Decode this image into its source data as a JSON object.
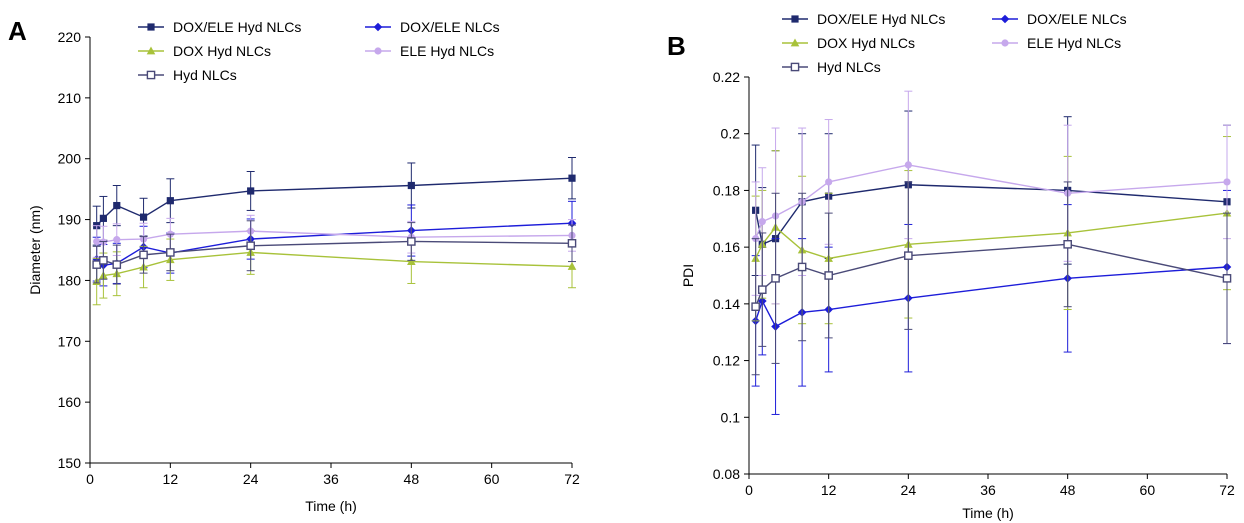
{
  "chart_data": [
    {
      "type": "line",
      "panel_label": "A",
      "xlabel": "Time (h)",
      "ylabel": "Diameter (nm)",
      "xlim": [
        0,
        72
      ],
      "ylim": [
        150,
        220
      ],
      "xticks": [
        0,
        12,
        24,
        36,
        48,
        60,
        72
      ],
      "yticks": [
        150,
        160,
        170,
        180,
        190,
        200,
        210,
        220
      ],
      "grid": false,
      "legend_position": "top-center",
      "x": [
        1,
        2,
        4,
        8,
        12,
        24,
        48,
        72
      ],
      "series": [
        {
          "name": "DOX/ELE Hyd NLCs",
          "color": "#1f2a6e",
          "marker": "square",
          "values": [
            189,
            190.2,
            192.3,
            190.4,
            193.1,
            194.7,
            195.6,
            196.8
          ],
          "errors": [
            3.2,
            3.6,
            3.3,
            3.1,
            3.6,
            3.2,
            3.7,
            3.4
          ]
        },
        {
          "name": "DOX/ELE NLCs",
          "color": "#1d1dd9",
          "marker": "diamond",
          "values": [
            183.5,
            182.5,
            182.8,
            185.5,
            184.5,
            186.8,
            188.2,
            189.4
          ],
          "errors": [
            3.6,
            3.4,
            3.3,
            3.4,
            3.3,
            3.3,
            4.2,
            3.6
          ]
        },
        {
          "name": "DOX Hyd NLCs",
          "color": "#a8c23a",
          "marker": "triangle",
          "values": [
            179.8,
            180.8,
            181.1,
            182.2,
            183.4,
            184.6,
            183.1,
            182.3
          ],
          "errors": [
            3.8,
            3.7,
            3.6,
            3.4,
            3.4,
            3.6,
            3.6,
            3.5
          ]
        },
        {
          "name": "ELE Hyd NLCs",
          "color": "#c6a8ec",
          "marker": "circle",
          "values": [
            186.4,
            186.3,
            186.7,
            186.8,
            187.6,
            188.1,
            187.1,
            187.4
          ],
          "errors": [
            2.6,
            2.6,
            2.6,
            2.6,
            2.6,
            2.6,
            2.6,
            2.6
          ]
        },
        {
          "name": "Hyd NLCs",
          "color": "#4a4a78",
          "marker": "open-square",
          "values": [
            182.6,
            183.3,
            182.6,
            184.2,
            184.6,
            185.7,
            186.4,
            186.1
          ],
          "errors": [
            3.0,
            3.1,
            3.2,
            3.0,
            3.0,
            4.1,
            3.1,
            3.0
          ]
        }
      ]
    },
    {
      "type": "line",
      "panel_label": "B",
      "xlabel": "Time (h)",
      "ylabel": "PDI",
      "xlim": [
        0,
        72
      ],
      "ylim": [
        0.08,
        0.22
      ],
      "xticks": [
        0,
        12,
        24,
        36,
        48,
        60,
        72
      ],
      "yticks": [
        0.08,
        0.1,
        0.12,
        0.14,
        0.16,
        0.18,
        0.2,
        0.22
      ],
      "grid": false,
      "legend_position": "top-center",
      "x": [
        1,
        2,
        4,
        8,
        12,
        24,
        48,
        72
      ],
      "series": [
        {
          "name": "DOX/ELE Hyd NLCs",
          "color": "#1f2a6e",
          "marker": "square",
          "values": [
            0.173,
            0.161,
            0.163,
            0.176,
            0.178,
            0.182,
            0.18,
            0.176
          ],
          "errors": [
            0.023,
            0.02,
            0.031,
            0.024,
            0.022,
            0.026,
            0.026,
            0.027
          ]
        },
        {
          "name": "DOX/ELE NLCs",
          "color": "#1d1dd9",
          "marker": "diamond",
          "values": [
            0.134,
            0.141,
            0.132,
            0.137,
            0.138,
            0.142,
            0.149,
            0.153
          ],
          "errors": [
            0.023,
            0.019,
            0.031,
            0.026,
            0.022,
            0.026,
            0.026,
            0.027
          ]
        },
        {
          "name": "DOX Hyd NLCs",
          "color": "#a8c23a",
          "marker": "triangle",
          "values": [
            0.156,
            0.161,
            0.167,
            0.159,
            0.156,
            0.161,
            0.165,
            0.172
          ],
          "errors": [
            0.022,
            0.019,
            0.027,
            0.026,
            0.023,
            0.026,
            0.027,
            0.027
          ]
        },
        {
          "name": "ELE Hyd NLCs",
          "color": "#c6a8ec",
          "marker": "circle",
          "values": [
            0.163,
            0.169,
            0.171,
            0.176,
            0.183,
            0.189,
            0.179,
            0.183
          ],
          "errors": [
            0.02,
            0.019,
            0.031,
            0.026,
            0.022,
            0.026,
            0.024,
            0.02
          ]
        },
        {
          "name": "Hyd NLCs",
          "color": "#4a4a78",
          "marker": "open-square",
          "values": [
            0.139,
            0.145,
            0.149,
            0.153,
            0.15,
            0.157,
            0.161,
            0.149
          ],
          "errors": [
            0.024,
            0.02,
            0.03,
            0.026,
            0.022,
            0.026,
            0.022,
            0.023
          ]
        }
      ]
    }
  ]
}
